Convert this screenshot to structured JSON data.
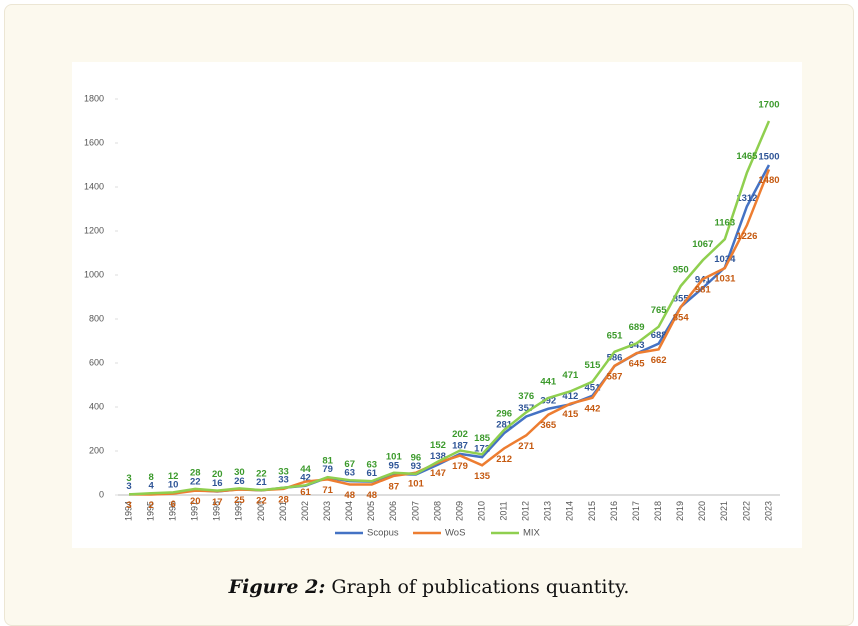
{
  "chart_data": {
    "type": "line",
    "categories": [
      "1994",
      "1995",
      "1996",
      "1997",
      "1998",
      "1999",
      "2000",
      "2001",
      "2002",
      "2003",
      "2004",
      "2005",
      "2006",
      "2007",
      "2008",
      "2009",
      "2010",
      "2011",
      "2012",
      "2013",
      "2014",
      "2015",
      "2016",
      "2017",
      "2018",
      "2019",
      "2020",
      "2021",
      "2022",
      "2023"
    ],
    "series": [
      {
        "name": "Scopus",
        "color": "#4472c4",
        "values": [
          3,
          4,
          10,
          22,
          16,
          26,
          21,
          33,
          42,
          79,
          63,
          61,
          95,
          93,
          138,
          187,
          172,
          281,
          357,
          392,
          412,
          451,
          586,
          643,
          688,
          855,
          941,
          1034,
          1312,
          1500
        ]
      },
      {
        "name": "WoS",
        "color": "#ed7d31",
        "values": [
          3,
          2,
          6,
          20,
          17,
          25,
          22,
          28,
          61,
          71,
          48,
          48,
          87,
          101,
          147,
          179,
          135,
          212,
          271,
          365,
          415,
          442,
          587,
          645,
          662,
          854,
          981,
          1031,
          1226,
          1480
        ]
      },
      {
        "name": "MIX",
        "color": "#8fcf4f",
        "values": [
          3,
          8,
          12,
          28,
          20,
          30,
          22,
          33,
          44,
          81,
          67,
          63,
          101,
          96,
          152,
          202,
          185,
          296,
          376,
          441,
          471,
          515,
          651,
          689,
          765,
          950,
          1067,
          1163,
          1465,
          1700
        ]
      }
    ],
    "ylim": [
      0,
      1800
    ],
    "yticks": [
      0,
      200,
      400,
      600,
      800,
      1000,
      1200,
      1400,
      1600,
      1800
    ],
    "legend": "bottom"
  },
  "caption": {
    "label": "Figure 2:",
    "text": "Graph of publications quantity."
  }
}
